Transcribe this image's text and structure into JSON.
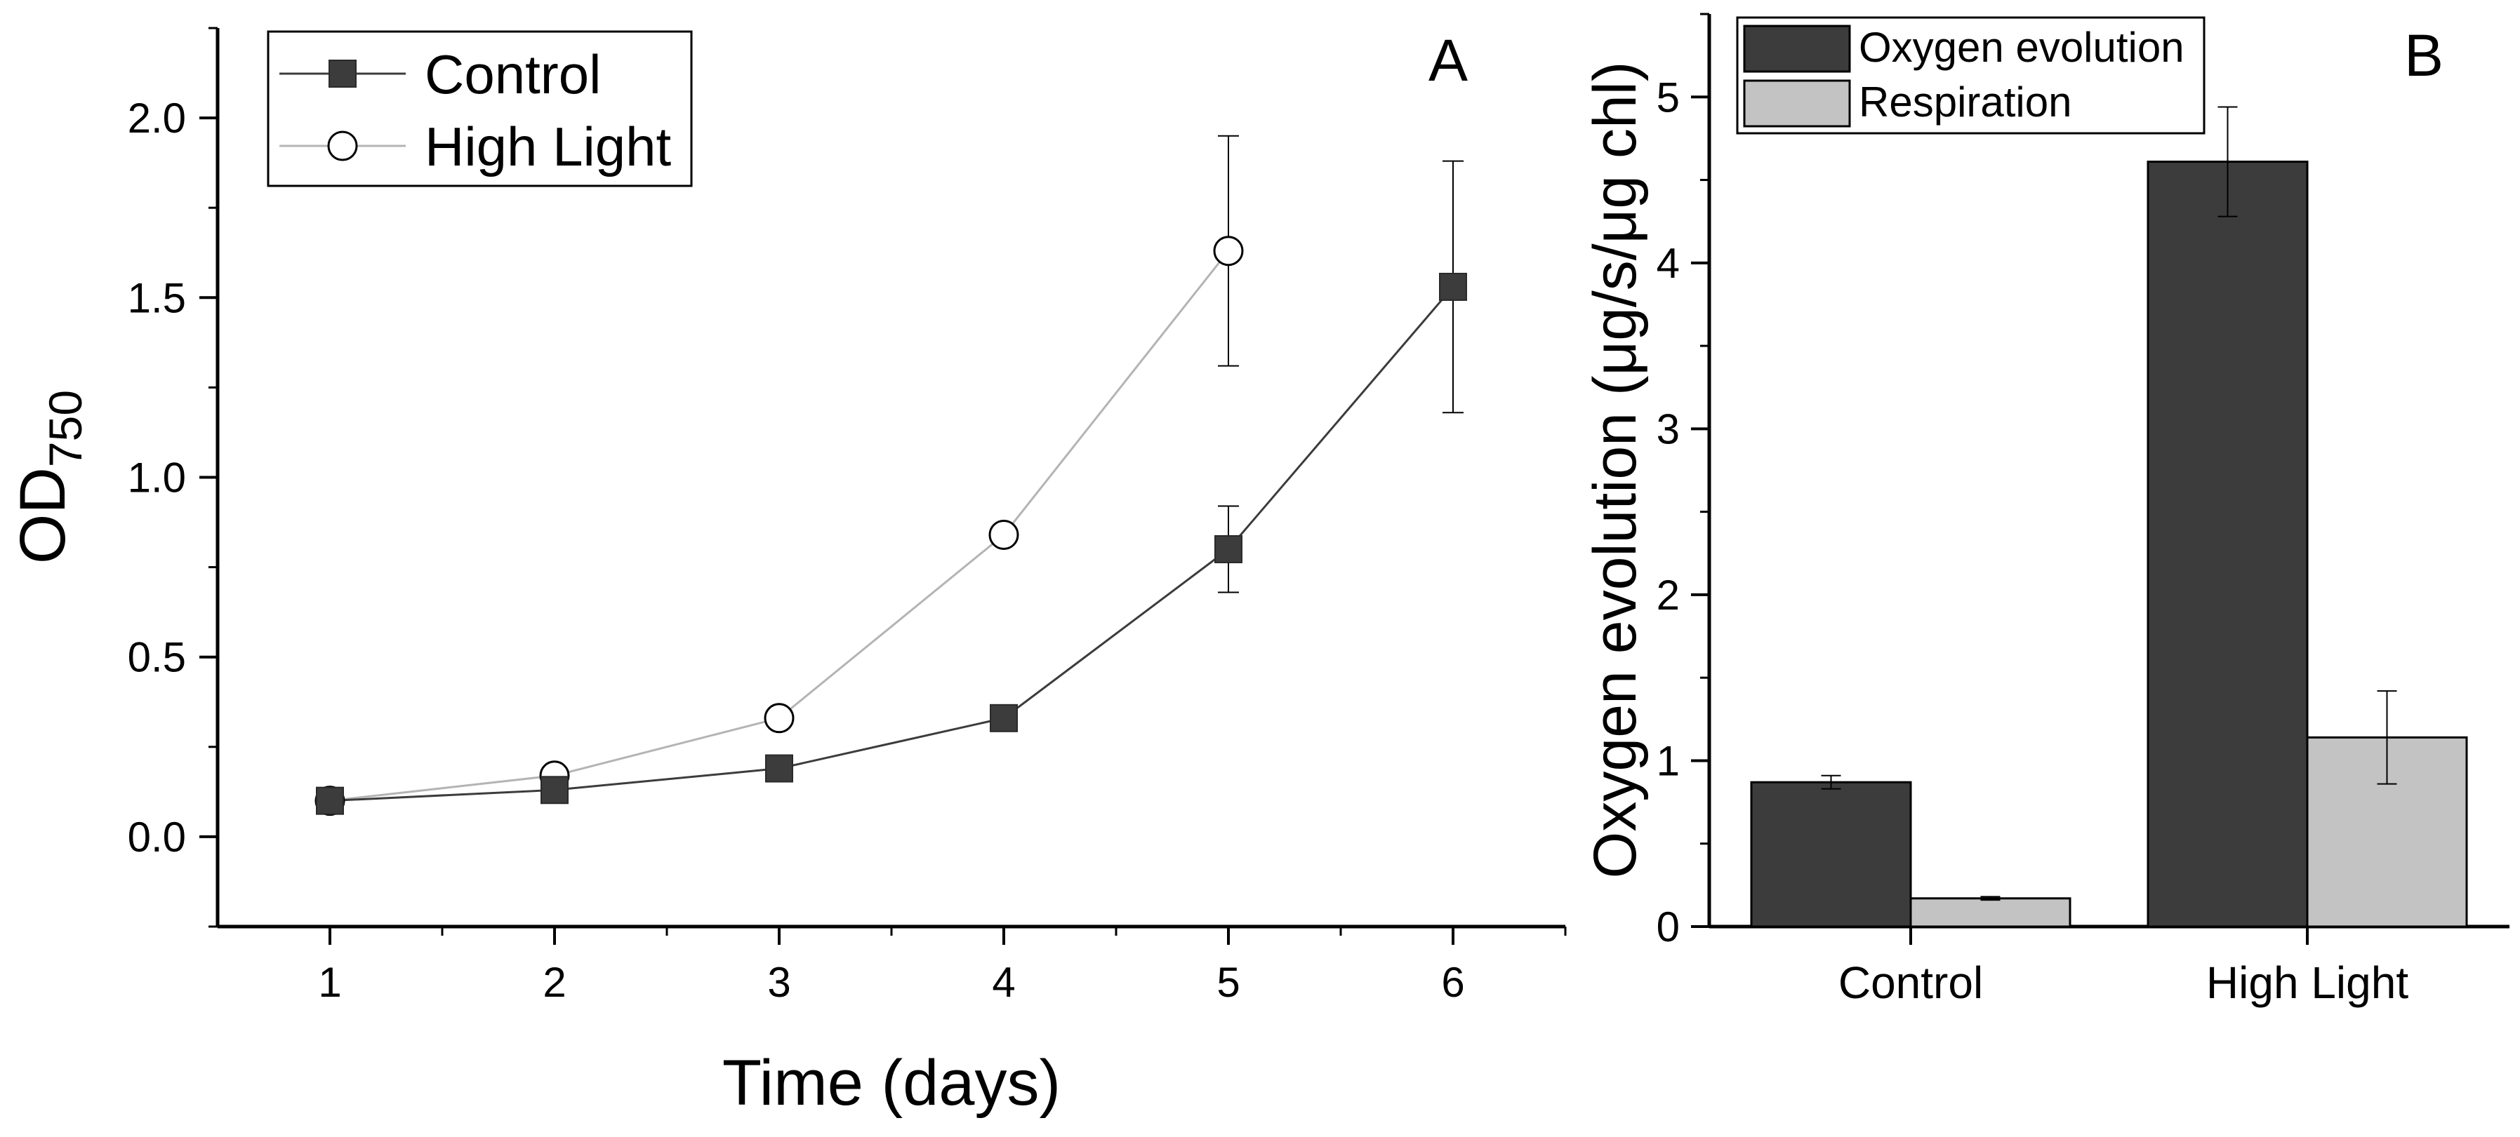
{
  "chart_data": [
    {
      "panel": "A",
      "type": "line",
      "xlabel": "Time (days)",
      "ylabel": "OD",
      "ylabel_subscript": "750",
      "xlim": [
        0.5,
        6.5
      ],
      "ylim": [
        -0.25,
        2.25
      ],
      "xticks": [
        "1",
        "2",
        "3",
        "4",
        "5",
        "6"
      ],
      "yticks": [
        "0.0",
        "0.5",
        "1.0",
        "1.5",
        "2.0"
      ],
      "legend_position": "top-left",
      "series": [
        {
          "name": "Control",
          "marker": "filled-square",
          "color": "#3c3c3c",
          "x": [
            1,
            2,
            3,
            4,
            5,
            6
          ],
          "y": [
            0.1,
            0.13,
            0.19,
            0.33,
            0.8,
            1.53
          ],
          "error": [
            0.02,
            0.02,
            0.02,
            0.02,
            0.12,
            0.35
          ]
        },
        {
          "name": "High Light",
          "marker": "open-circle",
          "color": "#b4b4b4",
          "x": [
            1,
            2,
            3,
            4,
            5
          ],
          "y": [
            0.1,
            0.17,
            0.33,
            0.84,
            1.63
          ],
          "error": [
            0.02,
            0.02,
            0.02,
            0.02,
            0.32
          ]
        }
      ]
    },
    {
      "panel": "B",
      "type": "bar",
      "ylabel": "Oxygen evolution  (μg/s/μg chl)",
      "ylim": [
        0,
        5.5
      ],
      "yticks": [
        "0",
        "1",
        "2",
        "3",
        "4",
        "5"
      ],
      "categories": [
        "Control",
        "High Light"
      ],
      "legend_position": "top-left",
      "series": [
        {
          "name": "Oxygen evolution",
          "color": "#3c3c3c",
          "values": [
            0.87,
            4.61
          ],
          "error": [
            0.04,
            0.33
          ]
        },
        {
          "name": "Respiration",
          "color": "#c3c3c3",
          "values": [
            0.17,
            1.14
          ],
          "error": [
            0.01,
            0.28
          ]
        }
      ]
    }
  ]
}
